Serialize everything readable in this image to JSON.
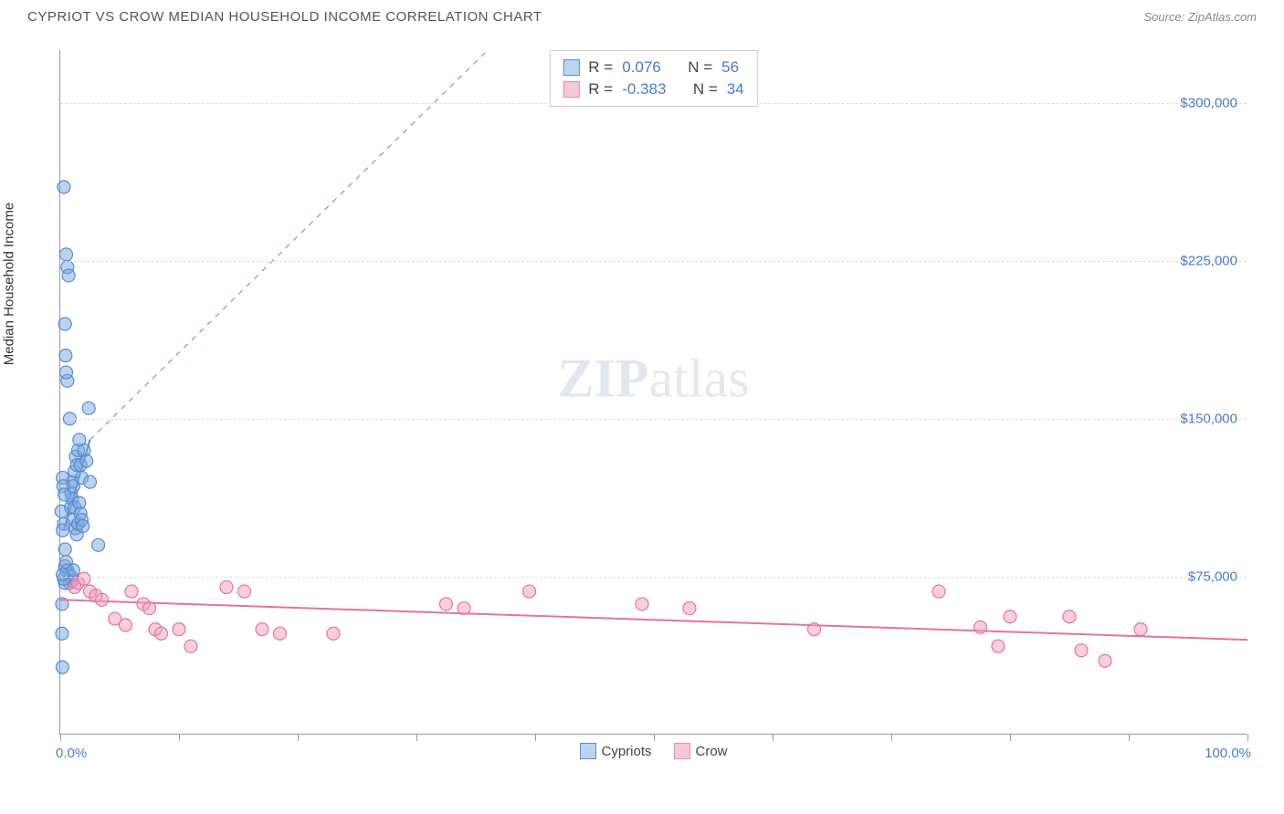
{
  "header": {
    "title": "CYPRIOT VS CROW MEDIAN HOUSEHOLD INCOME CORRELATION CHART",
    "source": "Source: ZipAtlas.com"
  },
  "chart": {
    "type": "scatter",
    "watermark": {
      "zip": "ZIP",
      "atlas": "atlas"
    },
    "y_axis": {
      "title": "Median Household Income",
      "min": 0,
      "max": 325000,
      "ticks": [
        {
          "value": 75000,
          "label": "$75,000"
        },
        {
          "value": 150000,
          "label": "$150,000"
        },
        {
          "value": 225000,
          "label": "$225,000"
        },
        {
          "value": 300000,
          "label": "$300,000"
        }
      ],
      "tick_color": "#4a7bc8",
      "title_fontsize": 15
    },
    "x_axis": {
      "min": 0,
      "max": 100,
      "labels": {
        "left": "0.0%",
        "right": "100.0%"
      },
      "tick_positions": [
        0,
        10,
        20,
        30,
        40,
        50,
        60,
        70,
        80,
        90,
        100
      ],
      "label_color": "#4a7bc8"
    },
    "grid_color": "#dddddd",
    "background_color": "#ffffff",
    "stats_box": {
      "rows": [
        {
          "swatch_fill": "#bcd4f0",
          "swatch_border": "#5a8bd0",
          "r_label": "R =",
          "r_val": "0.076",
          "n_label": "N =",
          "n_val": "56"
        },
        {
          "swatch_fill": "#f7c9d8",
          "swatch_border": "#e98bb0",
          "r_label": "R =",
          "r_val": "-0.383",
          "n_label": "N =",
          "n_val": "34"
        }
      ]
    },
    "bottom_legend": [
      {
        "swatch_fill": "#bcd4f0",
        "swatch_border": "#5a8bd0",
        "label": "Cypriots"
      },
      {
        "swatch_fill": "#f7c9d8",
        "swatch_border": "#e98bb0",
        "label": "Crow"
      }
    ],
    "series": [
      {
        "name": "Cypriots",
        "marker_color": "#5a8bd0",
        "marker_fill": "rgba(122,168,222,0.5)",
        "marker_radius": 7,
        "trend": {
          "x1": 0.3,
          "y1": 97000,
          "x2": 2.5,
          "y2": 140000,
          "solid_end_x": 2.5,
          "dash_to_x": 36,
          "dash_to_y": 325000,
          "color": "#5a8bd0",
          "width": 2
        },
        "points": [
          {
            "x": 0.1,
            "y": 106000
          },
          {
            "x": 0.3,
            "y": 100000
          },
          {
            "x": 0.2,
            "y": 97000
          },
          {
            "x": 0.4,
            "y": 88000
          },
          {
            "x": 0.15,
            "y": 48000
          },
          {
            "x": 0.18,
            "y": 32000
          },
          {
            "x": 0.3,
            "y": 260000
          },
          {
            "x": 0.4,
            "y": 195000
          },
          {
            "x": 0.5,
            "y": 228000
          },
          {
            "x": 0.6,
            "y": 222000
          },
          {
            "x": 0.7,
            "y": 218000
          },
          {
            "x": 0.45,
            "y": 180000
          },
          {
            "x": 0.8,
            "y": 150000
          },
          {
            "x": 0.6,
            "y": 168000
          },
          {
            "x": 0.5,
            "y": 172000
          },
          {
            "x": 0.4,
            "y": 80000
          },
          {
            "x": 0.9,
            "y": 115000
          },
          {
            "x": 1.0,
            "y": 120000
          },
          {
            "x": 1.1,
            "y": 118000
          },
          {
            "x": 1.2,
            "y": 125000
          },
          {
            "x": 1.3,
            "y": 132000
          },
          {
            "x": 1.4,
            "y": 128000
          },
          {
            "x": 1.5,
            "y": 135000
          },
          {
            "x": 1.6,
            "y": 140000
          },
          {
            "x": 1.7,
            "y": 128000
          },
          {
            "x": 1.8,
            "y": 122000
          },
          {
            "x": 2.0,
            "y": 135000
          },
          {
            "x": 2.2,
            "y": 130000
          },
          {
            "x": 2.4,
            "y": 155000
          },
          {
            "x": 2.5,
            "y": 120000
          },
          {
            "x": 0.9,
            "y": 108000
          },
          {
            "x": 1.0,
            "y": 112000
          },
          {
            "x": 1.1,
            "y": 102000
          },
          {
            "x": 1.2,
            "y": 108000
          },
          {
            "x": 1.3,
            "y": 98000
          },
          {
            "x": 1.4,
            "y": 95000
          },
          {
            "x": 1.5,
            "y": 100000
          },
          {
            "x": 0.2,
            "y": 122000
          },
          {
            "x": 0.25,
            "y": 118000
          },
          {
            "x": 0.35,
            "y": 114000
          },
          {
            "x": 1.6,
            "y": 110000
          },
          {
            "x": 1.7,
            "y": 105000
          },
          {
            "x": 1.8,
            "y": 102000
          },
          {
            "x": 1.9,
            "y": 99000
          },
          {
            "x": 3.2,
            "y": 90000
          },
          {
            "x": 0.5,
            "y": 82000
          },
          {
            "x": 0.6,
            "y": 78000
          },
          {
            "x": 0.7,
            "y": 76000
          },
          {
            "x": 0.8,
            "y": 72000
          },
          {
            "x": 0.9,
            "y": 75000
          },
          {
            "x": 1.0,
            "y": 73000
          },
          {
            "x": 1.1,
            "y": 78000
          },
          {
            "x": 0.4,
            "y": 72000
          },
          {
            "x": 0.3,
            "y": 74000
          },
          {
            "x": 0.2,
            "y": 76000
          },
          {
            "x": 0.15,
            "y": 62000
          }
        ]
      },
      {
        "name": "Crow",
        "marker_color": "#e374a0",
        "marker_fill": "rgba(240,160,190,0.5)",
        "marker_radius": 7,
        "trend": {
          "x1": 0,
          "y1": 64000,
          "x2": 100,
          "y2": 45000,
          "color": "#e374a0",
          "width": 2
        },
        "points": [
          {
            "x": 1.2,
            "y": 70000
          },
          {
            "x": 1.5,
            "y": 72000
          },
          {
            "x": 2.0,
            "y": 74000
          },
          {
            "x": 2.5,
            "y": 68000
          },
          {
            "x": 3.0,
            "y": 66000
          },
          {
            "x": 3.5,
            "y": 64000
          },
          {
            "x": 4.6,
            "y": 55000
          },
          {
            "x": 5.5,
            "y": 52000
          },
          {
            "x": 6.0,
            "y": 68000
          },
          {
            "x": 7.0,
            "y": 62000
          },
          {
            "x": 7.5,
            "y": 60000
          },
          {
            "x": 8.0,
            "y": 50000
          },
          {
            "x": 8.5,
            "y": 48000
          },
          {
            "x": 10.0,
            "y": 50000
          },
          {
            "x": 11.0,
            "y": 42000
          },
          {
            "x": 14.0,
            "y": 70000
          },
          {
            "x": 15.5,
            "y": 68000
          },
          {
            "x": 17.0,
            "y": 50000
          },
          {
            "x": 18.5,
            "y": 48000
          },
          {
            "x": 23.0,
            "y": 48000
          },
          {
            "x": 32.5,
            "y": 62000
          },
          {
            "x": 34.0,
            "y": 60000
          },
          {
            "x": 39.5,
            "y": 68000
          },
          {
            "x": 49.0,
            "y": 62000
          },
          {
            "x": 53.0,
            "y": 60000
          },
          {
            "x": 63.5,
            "y": 50000
          },
          {
            "x": 74.0,
            "y": 68000
          },
          {
            "x": 77.5,
            "y": 51000
          },
          {
            "x": 79.0,
            "y": 42000
          },
          {
            "x": 80.0,
            "y": 56000
          },
          {
            "x": 85.0,
            "y": 56000
          },
          {
            "x": 86.0,
            "y": 40000
          },
          {
            "x": 88.0,
            "y": 35000
          },
          {
            "x": 91.0,
            "y": 50000
          }
        ]
      }
    ]
  }
}
